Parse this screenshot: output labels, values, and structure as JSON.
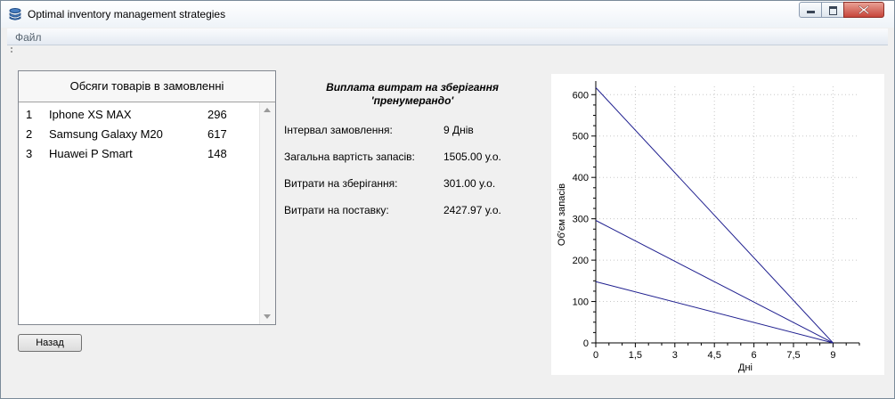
{
  "window": {
    "title": "Optimal inventory management strategies"
  },
  "menu": {
    "file": "Файл"
  },
  "order_list": {
    "header": "Обсяги товарів в замовленні",
    "items": [
      {
        "num": "1",
        "name": "Iphone XS MAX",
        "qty": "296"
      },
      {
        "num": "2",
        "name": "Samsung Galaxy M20",
        "qty": "617"
      },
      {
        "num": "3",
        "name": "Huawei P Smart",
        "qty": "148"
      }
    ]
  },
  "buttons": {
    "back": "Назад"
  },
  "info": {
    "title_line1": "Виплата витрат на зберігання",
    "title_line2": "'пренумерандо'",
    "order_interval_label": "Інтервал замовлення:",
    "order_interval_value": "9 Днів",
    "total_cost_label": "Загальна вартість запасів:",
    "total_cost_value": "1505.00 у.о.",
    "storage_cost_label": "Витрати на зберігання:",
    "storage_cost_value": "301.00 у.о.",
    "delivery_cost_label": "Витрати на поставку:",
    "delivery_cost_value": "2427.97 у.о."
  },
  "chart_data": {
    "type": "line",
    "xlabel": "Дні",
    "ylabel": "Об'єм запасів",
    "xlim": [
      0,
      10
    ],
    "ylim": [
      0,
      620
    ],
    "x_ticks": [
      "0",
      "1,5",
      "3",
      "4,5",
      "6",
      "7,5",
      "9"
    ],
    "x_tick_values": [
      0,
      1.5,
      3,
      4.5,
      6,
      7.5,
      9
    ],
    "y_ticks": [
      "0",
      "100",
      "200",
      "300",
      "400",
      "500",
      "600"
    ],
    "y_tick_values": [
      0,
      100,
      200,
      300,
      400,
      500,
      600
    ],
    "grid": true,
    "line_color": "#1f1f8f",
    "series": [
      {
        "x": [
          0,
          9
        ],
        "y": [
          617,
          0
        ]
      },
      {
        "x": [
          0,
          9
        ],
        "y": [
          296,
          0
        ]
      },
      {
        "x": [
          0,
          9
        ],
        "y": [
          148,
          0
        ]
      }
    ]
  }
}
